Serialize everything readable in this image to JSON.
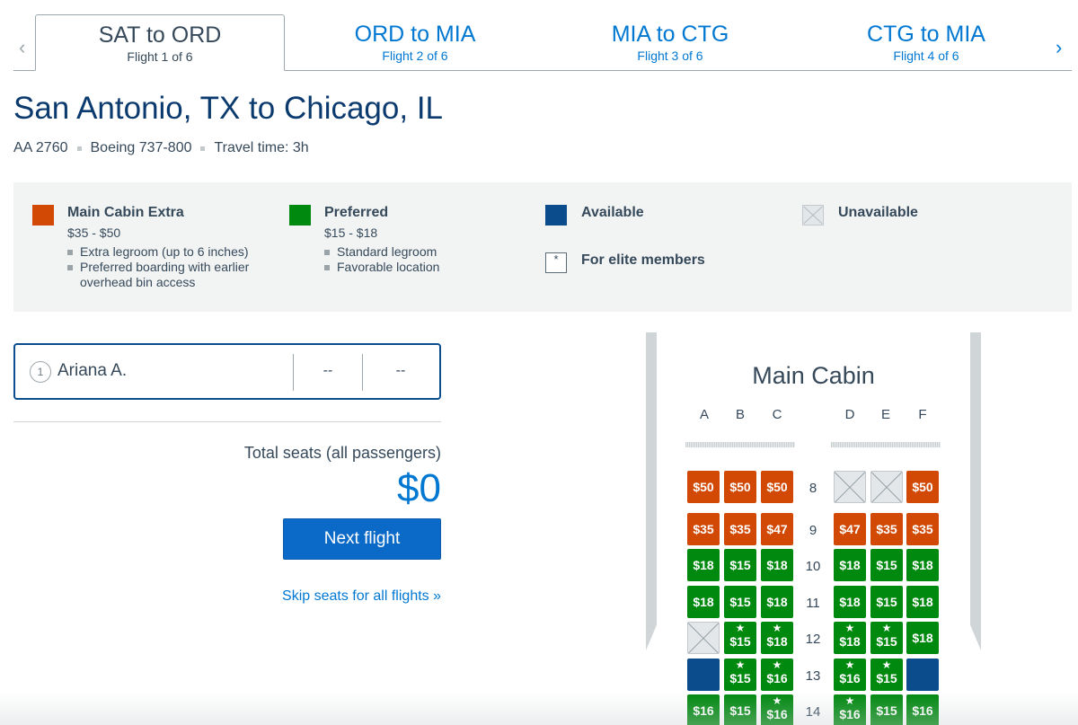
{
  "tabs": {
    "prev_icon": "chevron-left-icon",
    "next_icon": "chevron-right-icon",
    "items": [
      {
        "title": "SAT to ORD",
        "sub": "Flight 1 of 6",
        "active": true
      },
      {
        "title": "ORD to MIA",
        "sub": "Flight 2 of 6",
        "active": false
      },
      {
        "title": "MIA to CTG",
        "sub": "Flight 3 of 6",
        "active": false
      },
      {
        "title": "CTG to MIA",
        "sub": "Flight 4 of 6",
        "active": false
      }
    ]
  },
  "flight": {
    "route_title": "San Antonio, TX to Chicago, IL",
    "number": "AA 2760",
    "aircraft": "Boeing 737-800",
    "travel_time": "Travel time: 3h"
  },
  "legend": {
    "main_cabin_extra": {
      "label": "Main Cabin Extra",
      "price": "$35 - $50",
      "color": "#d14904",
      "bullets": [
        "Extra legroom (up to 6 inches)",
        "Preferred boarding with earlier overhead bin access"
      ]
    },
    "preferred": {
      "label": "Preferred",
      "price": "$15 - $18",
      "color": "#00890f",
      "bullets": [
        "Standard legroom",
        "Favorable location"
      ]
    },
    "available": {
      "label": "Available",
      "color": "#0b4c8c"
    },
    "unavailable": {
      "label": "Unavailable"
    },
    "elite": {
      "label": "For elite members",
      "symbol": "*"
    }
  },
  "passenger": {
    "number": "1",
    "name": "Ariana A.",
    "seat1": "--",
    "seat2": "--"
  },
  "summary": {
    "total_label": "Total seats (all passengers)",
    "total_amount": "$0",
    "next_button": "Next flight",
    "skip_link": "Skip seats for all flights »"
  },
  "seatmap": {
    "cabin_title": "Main Cabin",
    "columns": [
      "A",
      "B",
      "C",
      "D",
      "E",
      "F"
    ],
    "rows": [
      {
        "num": "8",
        "seats": [
          {
            "type": "orange",
            "price": "$50"
          },
          {
            "type": "orange",
            "price": "$50"
          },
          {
            "type": "orange",
            "price": "$50"
          },
          {
            "type": "unavail"
          },
          {
            "type": "unavail"
          },
          {
            "type": "orange",
            "price": "$50"
          }
        ]
      },
      {
        "num": "9",
        "seats": [
          {
            "type": "orange",
            "price": "$35"
          },
          {
            "type": "orange",
            "price": "$35"
          },
          {
            "type": "orange",
            "price": "$47"
          },
          {
            "type": "orange",
            "price": "$47"
          },
          {
            "type": "orange",
            "price": "$35"
          },
          {
            "type": "orange",
            "price": "$35"
          }
        ]
      },
      {
        "num": "10",
        "seats": [
          {
            "type": "green",
            "price": "$18"
          },
          {
            "type": "green",
            "price": "$15"
          },
          {
            "type": "green",
            "price": "$18"
          },
          {
            "type": "green",
            "price": "$18"
          },
          {
            "type": "green",
            "price": "$15"
          },
          {
            "type": "green",
            "price": "$18"
          }
        ]
      },
      {
        "num": "11",
        "seats": [
          {
            "type": "green",
            "price": "$18"
          },
          {
            "type": "green",
            "price": "$15"
          },
          {
            "type": "green",
            "price": "$18"
          },
          {
            "type": "green",
            "price": "$18"
          },
          {
            "type": "green",
            "price": "$15"
          },
          {
            "type": "green",
            "price": "$18"
          }
        ]
      },
      {
        "num": "12",
        "seats": [
          {
            "type": "unavail"
          },
          {
            "type": "green",
            "price": "$15",
            "elite": true
          },
          {
            "type": "green",
            "price": "$18",
            "elite": true
          },
          {
            "type": "green",
            "price": "$18",
            "elite": true
          },
          {
            "type": "green",
            "price": "$15",
            "elite": true
          },
          {
            "type": "green",
            "price": "$18"
          }
        ]
      },
      {
        "num": "13",
        "seats": [
          {
            "type": "blue"
          },
          {
            "type": "green",
            "price": "$15",
            "elite": true
          },
          {
            "type": "green",
            "price": "$16",
            "elite": true
          },
          {
            "type": "green",
            "price": "$16",
            "elite": true
          },
          {
            "type": "green",
            "price": "$15",
            "elite": true
          },
          {
            "type": "blue"
          }
        ]
      },
      {
        "num": "14",
        "seats": [
          {
            "type": "green",
            "price": "$16"
          },
          {
            "type": "green",
            "price": "$15"
          },
          {
            "type": "green",
            "price": "$16",
            "elite": true
          },
          {
            "type": "green",
            "price": "$16",
            "elite": true
          },
          {
            "type": "green",
            "price": "$15"
          },
          {
            "type": "green",
            "price": "$16"
          }
        ]
      }
    ]
  }
}
